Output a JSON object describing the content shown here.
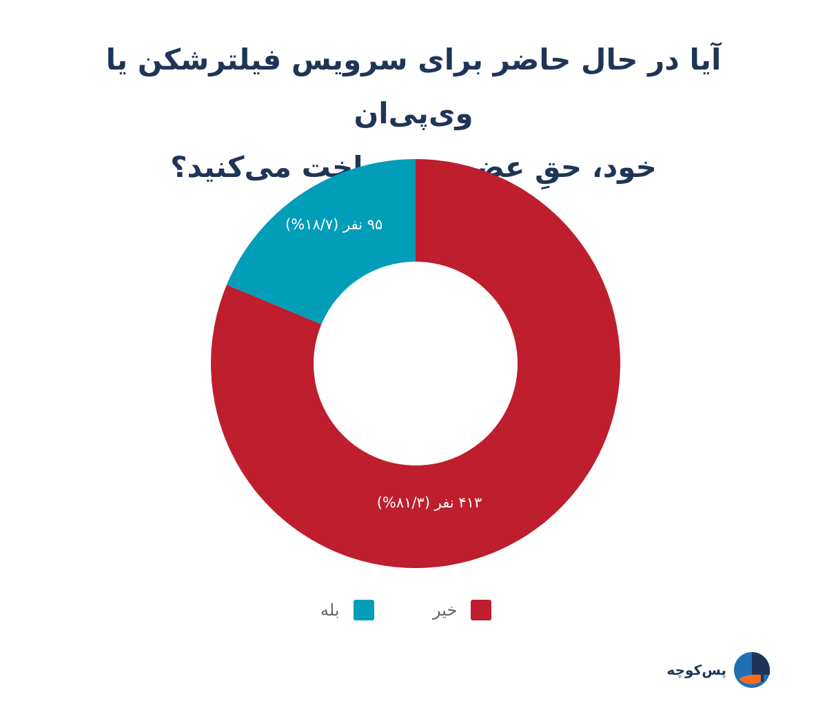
{
  "title_lines": [
    "آیا در حال حاضر برای سرویس فیلترشکن یا وی‌پی‌ان",
    "خود، حقِ عضویت پرداخت می‌کنید؟"
  ],
  "chart_data": {
    "type": "pie",
    "donut": true,
    "title": "آیا در حال حاضر برای سرویس فیلترشکن یا وی‌پی‌ان خود، حقِ عضویت پرداخت می‌کنید؟",
    "slices": [
      {
        "name": "خیر",
        "value": 413,
        "percent": 81.3,
        "label": "۴۱۳ نفر (۸۱/۳%)",
        "color": "#be1e2d"
      },
      {
        "name": "بله",
        "value": 95,
        "percent": 18.7,
        "label": "۹۵ نفر (۱۸/۷%)",
        "color": "#029db9"
      }
    ],
    "legend": {
      "placement": "bottom",
      "items": [
        {
          "label": "خیر",
          "color": "#be1e2d"
        },
        {
          "label": "بله",
          "color": "#029db9"
        }
      ]
    }
  },
  "brand": {
    "name": "پس‌کوچه",
    "icon": "paskoocheh-logo-icon",
    "colors": {
      "dark": "#1f3557",
      "blue": "#1f6fb5",
      "orange": "#f26b21"
    }
  },
  "colors": {
    "title": "#1f3557",
    "legend_text": "#666666",
    "background": "#ffffff"
  }
}
